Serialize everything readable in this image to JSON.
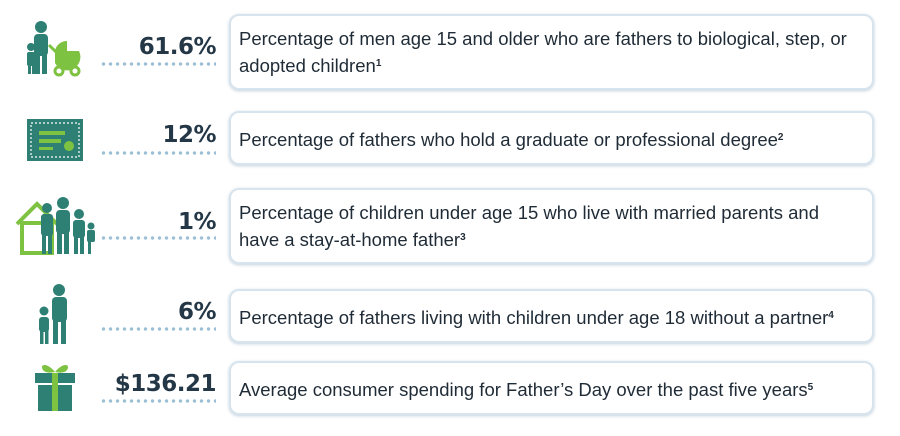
{
  "colors": {
    "icon_teal": "#2e7f74",
    "icon_green": "#7ec242",
    "text_dark": "#243746",
    "dots": "#9dbfd6",
    "card_border": "#d7e4ee"
  },
  "facts": [
    {
      "icon": "father-with-child-and-stroller-icon",
      "stat": "61.6%",
      "text": "Percentage of men age 15 and older who are fathers to biological, step, or adopted children",
      "note": "1"
    },
    {
      "icon": "diploma-certificate-icon",
      "stat": "12%",
      "text": "Percentage of fathers who hold a graduate or professional degree",
      "note": "2"
    },
    {
      "icon": "family-with-house-icon",
      "stat": "1%",
      "text": "Percentage of children under age 15 who live with married parents and have a stay-at-home father",
      "note": "3"
    },
    {
      "icon": "father-and-child-icon",
      "stat": "6%",
      "text": "Percentage of fathers living with children under age 18 without a partner",
      "note": "4"
    },
    {
      "icon": "gift-box-icon",
      "stat": "$136.21",
      "text": "Average consumer spending for Father’s Day over the past five years",
      "note": "5"
    }
  ]
}
